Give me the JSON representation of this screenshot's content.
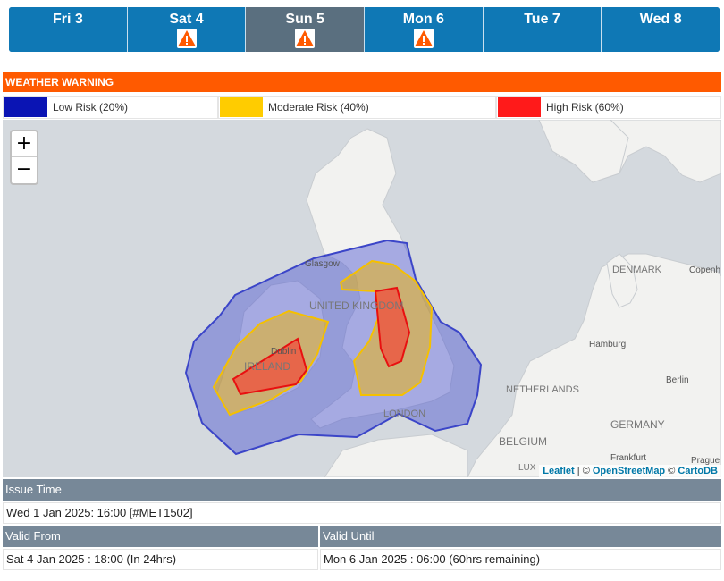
{
  "days": [
    {
      "label": "Fri 3",
      "warning": false,
      "active": false
    },
    {
      "label": "Sat 4",
      "warning": true,
      "active": false
    },
    {
      "label": "Sun 5",
      "warning": true,
      "active": true
    },
    {
      "label": "Mon 6",
      "warning": true,
      "active": false
    },
    {
      "label": "Tue 7",
      "warning": false,
      "active": false
    },
    {
      "label": "Wed 8",
      "warning": false,
      "active": false
    }
  ],
  "warning_title": "WEATHER WARNING",
  "legend": [
    {
      "label": "Low Risk (20%)",
      "color": "#0a14b4"
    },
    {
      "label": "Moderate Risk (40%)",
      "color": "#ffcc00"
    },
    {
      "label": "High Risk (60%)",
      "color": "#ff1a1a"
    }
  ],
  "map": {
    "zoom_in": "+",
    "zoom_out": "−",
    "place_labels": {
      "glasgow": "Glasgow",
      "uk": "UNITED KINGDOM",
      "dublin": "Dublin",
      "ireland": "IRELAND",
      "london": "LONDON",
      "denmark": "DENMARK",
      "copenhagen": "Copenh",
      "hamburg": "Hamburg",
      "berlin": "Berlin",
      "netherlands": "NETHERLANDS",
      "germany": "GERMANY",
      "belgium": "BELGIUM",
      "frankfurt": "Frankfurt",
      "lux": "LUX",
      "prague": "Prague"
    },
    "attribution": {
      "leaflet": "Leaflet",
      "sep1": " | © ",
      "osm": "OpenStreetMap",
      "sep2": " © ",
      "carto": "CartoDB"
    }
  },
  "issue_time": {
    "heading": "Issue Time",
    "value": "Wed 1 Jan 2025: 16:00  [#MET1502]"
  },
  "valid_from": {
    "heading": "Valid From",
    "value": "Sat 4 Jan 2025 : 18:00  (In 24hrs)"
  },
  "valid_until": {
    "heading": "Valid Until",
    "value": "Mon 6 Jan 2025 : 06:00  (60hrs remaining)"
  }
}
